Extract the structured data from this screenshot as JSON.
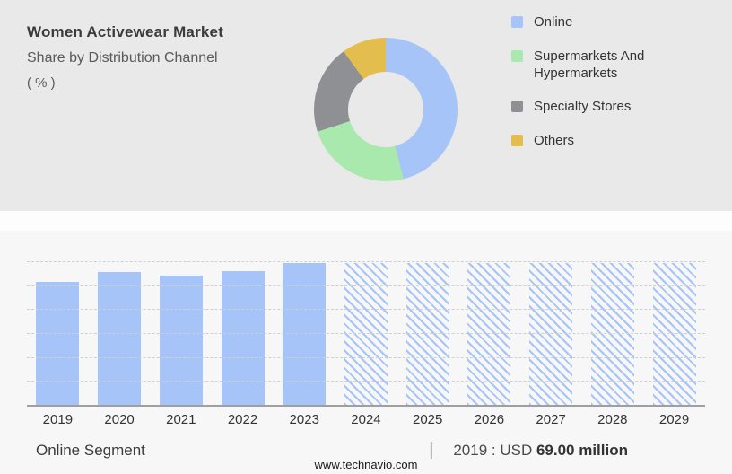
{
  "header": {
    "title": "Women Activewear Market",
    "subtitle": "Share by Distribution Channel",
    "unit": "( % )"
  },
  "footer": {
    "segment_label": "Online Segment",
    "separator": "|",
    "stat_prefix": "2019 : USD ",
    "stat_value": "69.00 million",
    "website": "www.technavio.com"
  },
  "chart_data": [
    {
      "type": "pie",
      "title": "Women Activewear Market Share by Distribution Channel (%)",
      "labels": [
        "Online",
        "Supermarkets And Hypermarkets",
        "Specialty Stores",
        "Others"
      ],
      "values": [
        46,
        24,
        20,
        10
      ],
      "colors": [
        "#a6c4f7",
        "#a9e9ad",
        "#8f9093",
        "#e3bd4e"
      ],
      "legend_position": "right",
      "donut": true
    },
    {
      "type": "bar",
      "title": "Online Segment market size (USD million)",
      "categories": [
        "2019",
        "2020",
        "2021",
        "2022",
        "2023",
        "2024",
        "2025",
        "2026",
        "2027",
        "2028",
        "2029"
      ],
      "values": [
        69.0,
        74.5,
        72.5,
        75.0,
        79.5,
        79.5,
        79.5,
        79.5,
        79.5,
        79.5,
        79.5
      ],
      "historical_count": 5,
      "forecast_style": "hatched",
      "bar_color": "#a6c4f7",
      "ylim": [
        0,
        80.5
      ],
      "grid": true,
      "annotation": "2019 : USD 69.00 million"
    }
  ]
}
